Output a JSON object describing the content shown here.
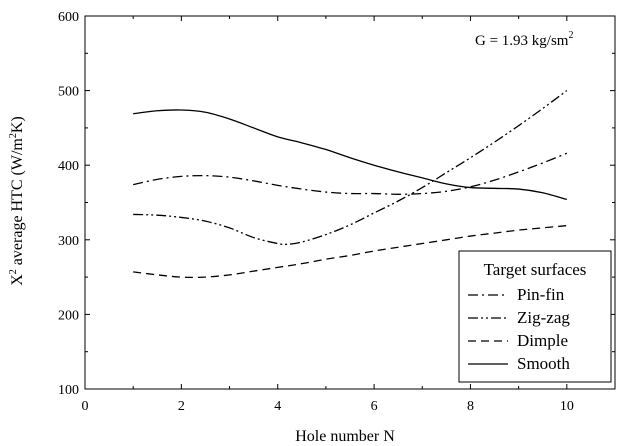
{
  "chart_data": {
    "type": "line",
    "title": "",
    "annotation": {
      "main": "G = 1.93 kg/sm",
      "superscript": "2"
    },
    "xlabel": "Hole number N",
    "ylabel": {
      "p1": "X",
      "sup1": "2",
      "p2": " average HTC (W/m",
      "sup2": "2",
      "p3": "K)"
    },
    "xlim": [
      0,
      11
    ],
    "ylim": [
      100,
      600
    ],
    "xticks": [
      0,
      2,
      4,
      6,
      8,
      10
    ],
    "yticks": [
      100,
      200,
      300,
      400,
      500,
      600
    ],
    "grid": false,
    "legend": {
      "title": "Target surfaces",
      "placement": "bottom-right"
    },
    "series": [
      {
        "name": "Pin-fin",
        "dash": "dashdot",
        "x": [
          1,
          1.5,
          2,
          2.5,
          3,
          3.5,
          4,
          4.5,
          5,
          5.5,
          6,
          6.5,
          7,
          7.5,
          8,
          8.5,
          9,
          9.5,
          10
        ],
        "y": [
          374,
          381,
          385,
          386,
          384,
          379,
          373,
          368,
          364,
          362,
          362,
          361,
          362,
          365,
          371,
          380,
          391,
          403,
          416
        ]
      },
      {
        "name": "Zig-zag",
        "dash": "dashdotdot",
        "x": [
          1,
          1.5,
          2,
          2.5,
          3,
          3.5,
          4,
          4.2,
          4.5,
          5,
          5.5,
          6,
          6.5,
          7,
          7.5,
          8,
          8.5,
          9,
          9.5,
          10
        ],
        "y": [
          334,
          333,
          330,
          325,
          316,
          303,
          295,
          294,
          297,
          307,
          320,
          336,
          352,
          370,
          390,
          410,
          431,
          453,
          476,
          500
        ]
      },
      {
        "name": "Dimple",
        "dash": "dashed",
        "x": [
          1,
          1.5,
          2,
          2.5,
          3,
          3.5,
          4,
          4.5,
          5,
          5.5,
          6,
          6.5,
          7,
          7.5,
          8,
          8.5,
          9,
          9.5,
          10
        ],
        "y": [
          257,
          253,
          250,
          250,
          253,
          258,
          263,
          268,
          274,
          279,
          285,
          290,
          295,
          300,
          305,
          309,
          313,
          316,
          319
        ]
      },
      {
        "name": "Smooth",
        "dash": "solid",
        "x": [
          1,
          1.5,
          2,
          2.5,
          3,
          3.5,
          4,
          4.5,
          5,
          5.5,
          6,
          6.5,
          7,
          7.5,
          8,
          8.5,
          9,
          9.5,
          10
        ],
        "y": [
          469,
          473,
          474,
          471,
          462,
          450,
          438,
          430,
          421,
          410,
          400,
          391,
          383,
          375,
          370,
          369,
          368,
          363,
          354
        ]
      }
    ]
  }
}
